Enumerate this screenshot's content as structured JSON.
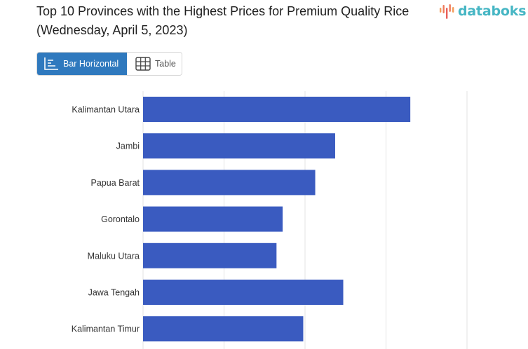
{
  "header": {
    "title": "Top 10 Provinces with the Highest Prices for Premium Quality Rice (Wednesday, April 5, 2023)",
    "brand": "databoks"
  },
  "view_toggle": {
    "bar_label": "Bar Horizontal",
    "table_label": "Table",
    "active": "bar"
  },
  "colors": {
    "bar": "#3a5bc0",
    "accent": "#2f79be",
    "brand": "#46b6c4",
    "grid": "#e3e3e3"
  },
  "icons": [
    "databoks-logo-icon",
    "bar-chart-icon",
    "table-icon"
  ],
  "chart_data": {
    "type": "bar",
    "orientation": "horizontal",
    "title": "Top 10 Provinces with the Highest Prices for Premium Quality Rice (Wednesday, April 5, 2023)",
    "categories": [
      "Kalimantan Utara",
      "Jambi",
      "Papua Barat",
      "Gorontalo",
      "Maluku Utara",
      "Jawa Tengah",
      "Kalimantan Timur"
    ],
    "values": [
      16500,
      11860,
      10630,
      8620,
      8240,
      12360,
      9890
    ],
    "xlim": [
      0,
      20000
    ],
    "grid": true,
    "legend": "none"
  }
}
